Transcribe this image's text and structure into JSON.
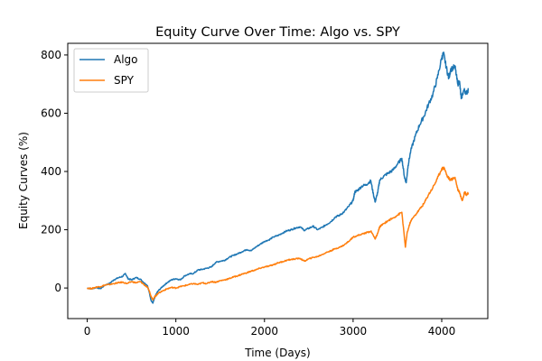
{
  "chart_data": {
    "type": "line",
    "title": "Equity Curve Over Time: Algo vs. SPY",
    "xlabel": "Time (Days)",
    "ylabel": "Equity Curves (%)",
    "xlim": [
      -220,
      4520
    ],
    "ylim": [
      -105,
      840
    ],
    "xticks": [
      0,
      1000,
      2000,
      3000,
      4000
    ],
    "yticks": [
      0,
      200,
      400,
      600,
      800
    ],
    "grid": false,
    "legend": "top-left",
    "series": [
      {
        "name": "Algo",
        "color": "#1f77b4",
        "points": [
          [
            0,
            0
          ],
          [
            50,
            -3
          ],
          [
            100,
            2
          ],
          [
            150,
            -2
          ],
          [
            200,
            10
          ],
          [
            250,
            15
          ],
          [
            300,
            28
          ],
          [
            350,
            35
          ],
          [
            400,
            40
          ],
          [
            430,
            50
          ],
          [
            460,
            32
          ],
          [
            500,
            28
          ],
          [
            550,
            36
          ],
          [
            600,
            30
          ],
          [
            640,
            18
          ],
          [
            680,
            8
          ],
          [
            700,
            -15
          ],
          [
            720,
            -42
          ],
          [
            740,
            -52
          ],
          [
            760,
            -35
          ],
          [
            780,
            -20
          ],
          [
            800,
            -10
          ],
          [
            850,
            5
          ],
          [
            900,
            18
          ],
          [
            950,
            28
          ],
          [
            1000,
            32
          ],
          [
            1050,
            28
          ],
          [
            1100,
            42
          ],
          [
            1150,
            48
          ],
          [
            1200,
            50
          ],
          [
            1250,
            62
          ],
          [
            1300,
            64
          ],
          [
            1350,
            68
          ],
          [
            1400,
            72
          ],
          [
            1450,
            88
          ],
          [
            1500,
            92
          ],
          [
            1550,
            95
          ],
          [
            1600,
            105
          ],
          [
            1650,
            112
          ],
          [
            1700,
            118
          ],
          [
            1750,
            125
          ],
          [
            1800,
            132
          ],
          [
            1850,
            128
          ],
          [
            1900,
            140
          ],
          [
            1950,
            150
          ],
          [
            2000,
            160
          ],
          [
            2050,
            165
          ],
          [
            2100,
            175
          ],
          [
            2150,
            180
          ],
          [
            2200,
            188
          ],
          [
            2250,
            196
          ],
          [
            2300,
            200
          ],
          [
            2350,
            206
          ],
          [
            2400,
            210
          ],
          [
            2450,
            198
          ],
          [
            2500,
            205
          ],
          [
            2550,
            212
          ],
          [
            2600,
            200
          ],
          [
            2650,
            208
          ],
          [
            2700,
            218
          ],
          [
            2750,
            228
          ],
          [
            2800,
            244
          ],
          [
            2850,
            250
          ],
          [
            2900,
            262
          ],
          [
            2950,
            280
          ],
          [
            3000,
            300
          ],
          [
            3020,
            330
          ],
          [
            3050,
            335
          ],
          [
            3100,
            350
          ],
          [
            3150,
            355
          ],
          [
            3200,
            368
          ],
          [
            3230,
            320
          ],
          [
            3250,
            295
          ],
          [
            3280,
            332
          ],
          [
            3300,
            370
          ],
          [
            3350,
            385
          ],
          [
            3400,
            395
          ],
          [
            3450,
            405
          ],
          [
            3500,
            425
          ],
          [
            3550,
            445
          ],
          [
            3580,
            380
          ],
          [
            3600,
            362
          ],
          [
            3620,
            420
          ],
          [
            3650,
            470
          ],
          [
            3700,
            520
          ],
          [
            3750,
            560
          ],
          [
            3800,
            590
          ],
          [
            3850,
            630
          ],
          [
            3900,
            665
          ],
          [
            3950,
            720
          ],
          [
            4000,
            790
          ],
          [
            4020,
            805
          ],
          [
            4050,
            760
          ],
          [
            4080,
            720
          ],
          [
            4100,
            750
          ],
          [
            4150,
            760
          ],
          [
            4180,
            700
          ],
          [
            4200,
            710
          ],
          [
            4220,
            650
          ],
          [
            4250,
            680
          ],
          [
            4280,
            670
          ],
          [
            4300,
            680
          ]
        ]
      },
      {
        "name": "SPY",
        "color": "#ff7f0e",
        "points": [
          [
            0,
            0
          ],
          [
            50,
            -2
          ],
          [
            100,
            3
          ],
          [
            150,
            5
          ],
          [
            200,
            10
          ],
          [
            250,
            12
          ],
          [
            300,
            15
          ],
          [
            350,
            18
          ],
          [
            400,
            20
          ],
          [
            450,
            15
          ],
          [
            500,
            22
          ],
          [
            550,
            18
          ],
          [
            600,
            22
          ],
          [
            640,
            12
          ],
          [
            680,
            2
          ],
          [
            700,
            -10
          ],
          [
            720,
            -28
          ],
          [
            740,
            -40
          ],
          [
            760,
            -30
          ],
          [
            780,
            -25
          ],
          [
            800,
            -18
          ],
          [
            850,
            -10
          ],
          [
            900,
            -3
          ],
          [
            950,
            2
          ],
          [
            1000,
            0
          ],
          [
            1050,
            5
          ],
          [
            1100,
            8
          ],
          [
            1150,
            12
          ],
          [
            1200,
            15
          ],
          [
            1250,
            12
          ],
          [
            1300,
            18
          ],
          [
            1350,
            15
          ],
          [
            1400,
            22
          ],
          [
            1450,
            20
          ],
          [
            1500,
            25
          ],
          [
            1550,
            28
          ],
          [
            1600,
            32
          ],
          [
            1650,
            38
          ],
          [
            1700,
            42
          ],
          [
            1750,
            48
          ],
          [
            1800,
            52
          ],
          [
            1850,
            58
          ],
          [
            1900,
            62
          ],
          [
            1950,
            68
          ],
          [
            2000,
            72
          ],
          [
            2050,
            75
          ],
          [
            2100,
            80
          ],
          [
            2150,
            86
          ],
          [
            2200,
            90
          ],
          [
            2250,
            95
          ],
          [
            2300,
            98
          ],
          [
            2350,
            100
          ],
          [
            2400,
            102
          ],
          [
            2450,
            92
          ],
          [
            2500,
            100
          ],
          [
            2550,
            105
          ],
          [
            2600,
            108
          ],
          [
            2650,
            115
          ],
          [
            2700,
            122
          ],
          [
            2750,
            128
          ],
          [
            2800,
            135
          ],
          [
            2850,
            140
          ],
          [
            2900,
            148
          ],
          [
            2950,
            160
          ],
          [
            3000,
            175
          ],
          [
            3050,
            180
          ],
          [
            3100,
            185
          ],
          [
            3150,
            190
          ],
          [
            3200,
            195
          ],
          [
            3230,
            180
          ],
          [
            3250,
            168
          ],
          [
            3280,
            190
          ],
          [
            3300,
            210
          ],
          [
            3350,
            222
          ],
          [
            3400,
            232
          ],
          [
            3450,
            240
          ],
          [
            3500,
            250
          ],
          [
            3550,
            260
          ],
          [
            3580,
            170
          ],
          [
            3590,
            140
          ],
          [
            3610,
            190
          ],
          [
            3650,
            230
          ],
          [
            3700,
            250
          ],
          [
            3750,
            270
          ],
          [
            3800,
            290
          ],
          [
            3850,
            320
          ],
          [
            3900,
            345
          ],
          [
            3950,
            375
          ],
          [
            4000,
            410
          ],
          [
            4030,
            412
          ],
          [
            4060,
            385
          ],
          [
            4100,
            370
          ],
          [
            4150,
            380
          ],
          [
            4180,
            340
          ],
          [
            4200,
            330
          ],
          [
            4230,
            300
          ],
          [
            4260,
            330
          ],
          [
            4280,
            320
          ],
          [
            4300,
            325
          ]
        ]
      }
    ]
  }
}
